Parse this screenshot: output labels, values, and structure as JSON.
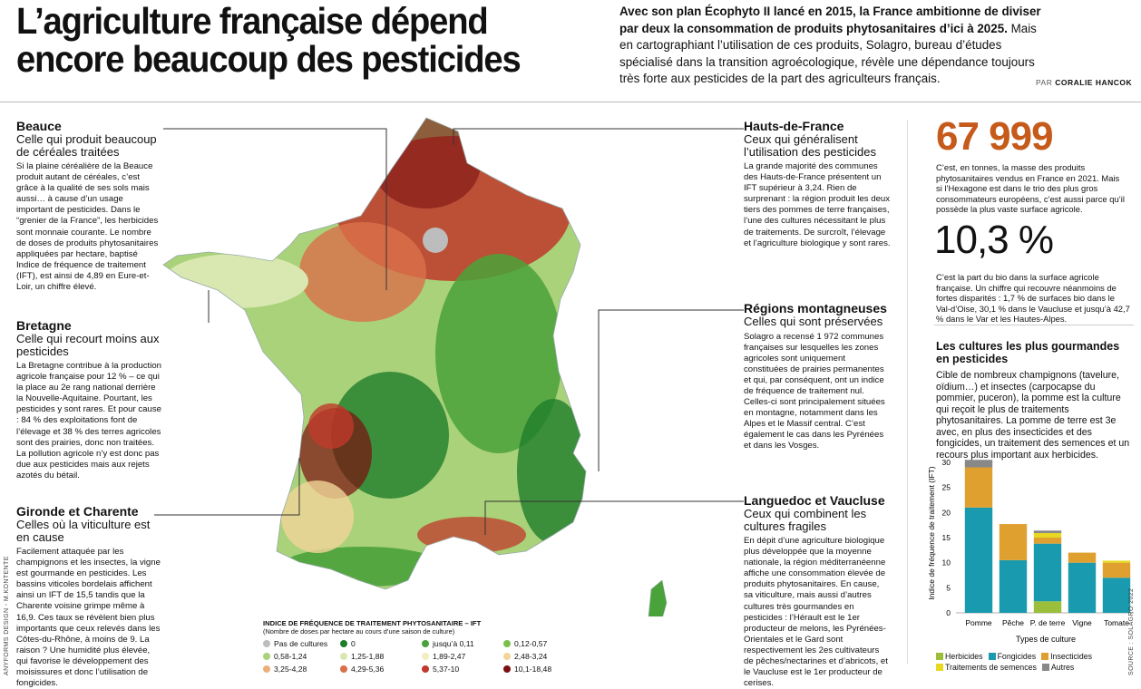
{
  "headline": {
    "line1": "L’agriculture française dépend",
    "line2": "encore beaucoup des pesticides"
  },
  "intro": {
    "bold": "Avec son plan Écophyto II lancé en 2015, la France ambitionne de diviser par deux la consommation de produits phytosanitaires d’ici à 2025.",
    "rest": " Mais en cartographiant l’utilisation de ces produits, Solagro, bureau d’études spécialisé dans la transition agroécologique, révèle une dépendance toujours très forte aux pesticides de la part des agriculteurs français."
  },
  "byline": {
    "prefix": "PAR ",
    "author": "CORALIE HANCOK"
  },
  "sections": {
    "beauce": {
      "title": "Beauce",
      "subtitle": "Celle qui produit beaucoup de céréales traitées",
      "body": "Si la plaine céréalière de la Beauce produit autant de céréales, c’est grâce à la qualité de ses sols mais aussi… à cause d’un usage important de pesticides. Dans le “grenier de la France”, les herbicides sont monnaie courante. Le nombre de doses de produits phytosanitaires appliquées par hectare, baptisé Indice de fréquence de traitement (IFT), est ainsi de 4,89 en Eure-et-Loir, un chiffre élevé."
    },
    "bretagne": {
      "title": "Bretagne",
      "subtitle": "Celle qui recourt moins aux pesticides",
      "body": "La Bretagne contribue à la production agricole française pour 12 % – ce qui la place au 2e rang national derrière la Nouvelle-Aquitaine. Pourtant, les pesticides y sont rares. Et pour cause : 84 % des exploitations font de l’élevage et 38 % des terres agricoles sont des prairies, donc non traitées. La pollution agricole n’y est donc pas due aux pesticides mais aux rejets azotés du bétail."
    },
    "gironde": {
      "title": "Gironde et Charente",
      "subtitle": "Celles où la viticulture est en cause",
      "body": "Facilement attaquée par les champignons et les insectes, la vigne est gourmande en pesticides. Les bassins viticoles bordelais affichent ainsi un IFT de 15,5 tandis que la Charente voisine grimpe même à 16,9. Ces taux se révèlent bien plus importants que ceux relevés dans les Côtes-du-Rhône, à moins de 9. La raison ? Une humidité plus élevée, qui favorise le développement des moisissures et donc l’utilisation de fongicides."
    },
    "hdf": {
      "title": "Hauts-de-France",
      "subtitle": "Ceux qui généralisent l’utilisation des pesticides",
      "body": "La grande majorité des communes des Hauts-de-France présentent un IFT supérieur à 3,24. Rien de surprenant : la région produit les deux tiers des pommes de terre françaises, l’une des cultures nécessitant le plus de traitements. De surcroît, l’élevage et l’agriculture biologique y sont rares."
    },
    "montagne": {
      "title": "Régions montagneuses",
      "subtitle": "Celles qui sont préservées",
      "body": "Solagro a recensé 1 972 communes françaises sur lesquelles les zones agricoles sont uniquement constituées de prairies permanentes et qui, par conséquent, ont un indice de fréquence de traitement nul. Celles-ci sont principalement situées en montagne, notamment dans les Alpes et le Massif central. C’est également le cas dans les Pyrénées et dans les Vosges."
    },
    "languedoc": {
      "title": "Languedoc et Vaucluse",
      "subtitle": "Ceux qui combinent les cultures fragiles",
      "body": "En dépit d’une agriculture biologique plus développée que la moyenne nationale, la région méditerranéenne affiche une consommation élevée de produits phytosanitaires. En cause, sa viticulture, mais aussi d’autres cultures très gourmandes en pesticides : l’Hérault est le 1er producteur de melons, les Pyrénées-Orientales et le Gard sont respectivement les 2es cultivateurs de pêches/nectarines et d’abricots, et le Vaucluse est le 1er producteur de cerises."
    }
  },
  "stats": {
    "stat1": {
      "value": "67 999",
      "text": "C’est, en tonnes, la masse des produits phytosanitaires vendus en France en 2021. Mais si l’Hexagone est dans le trio des plus gros consommateurs européens, c’est aussi parce qu’il possède la plus vaste surface agricole."
    },
    "stat2": {
      "value": "10,3 %",
      "text": "C’est la part du bio dans la surface agricole française. Un chiffre qui recouvre néanmoins de fortes disparités : 1,7 % de surfaces bio dans le Val-d’Oise, 30,1 % dans le Vaucluse et jusqu’à 42,7 % dans le Var et les Hautes-Alpes."
    }
  },
  "cultures": {
    "title": "Les cultures les plus gourmandes en pesticides",
    "text": "Cible de nombreux champignons (tavelure, oïdium…) et insectes (carpocapse du pommier, puceron), la pomme est la culture qui reçoit le plus de traitements phytosanitaires. La pomme de terre est 3e avec, en plus des insecticides et des fongicides, un traitement des semences et un recours plus important aux herbicides."
  },
  "chart_data": {
    "type": "bar",
    "stacked": true,
    "categories": [
      "Pomme",
      "Pêche",
      "P. de terre",
      "Vigne",
      "Tomate"
    ],
    "xlabel": "Types de culture",
    "ylabel": "Indice de fréquence de traitement (IFT)",
    "ylim": [
      0,
      30
    ],
    "yticks": [
      0,
      5,
      10,
      15,
      20,
      25,
      30
    ],
    "series": [
      {
        "name": "Herbicides",
        "color": "#9bbf3a",
        "values": [
          0,
          0,
          2.3,
          0,
          0
        ]
      },
      {
        "name": "Fongicides",
        "color": "#1a9aae",
        "values": [
          21,
          10.5,
          11.5,
          10,
          7
        ]
      },
      {
        "name": "Insecticides",
        "color": "#e0a030",
        "values": [
          8,
          7.2,
          1.2,
          2,
          3
        ]
      },
      {
        "name": "Traitements de semences",
        "color": "#e8d820",
        "values": [
          0,
          0,
          0.9,
          0,
          0.4
        ]
      },
      {
        "name": "Autres",
        "color": "#888888",
        "values": [
          1.5,
          0,
          0.5,
          0,
          0
        ]
      }
    ],
    "legend_position": "bottom"
  },
  "map_legend": {
    "title": "INDICE DE FRÉQUENCE DE TRAITEMENT PHYTOSANITAIRE – IFT",
    "subtitle": "(Nombre de doses par hectare au cours d’une saison de culture)",
    "items": [
      {
        "label": "Pas de cultures",
        "color": "#bdbdbd"
      },
      {
        "label": "0",
        "color": "#1f7d2a"
      },
      {
        "label": "jusqu’à 0,11",
        "color": "#4aa23a"
      },
      {
        "label": "0,12-0,57",
        "color": "#7bbf4a"
      },
      {
        "label": "0,58-1,24",
        "color": "#aad27a"
      },
      {
        "label": "1,25-1,88",
        "color": "#d9e8b0"
      },
      {
        "label": "1,89-2,47",
        "color": "#f1eec0"
      },
      {
        "label": "2,48-3,24",
        "color": "#f3d49a"
      },
      {
        "label": "3,25-4,28",
        "color": "#eab07a"
      },
      {
        "label": "4,29-5,36",
        "color": "#d9704a"
      },
      {
        "label": "5,37-10",
        "color": "#c0392b"
      },
      {
        "label": "10,1-18,48",
        "color": "#7a1010"
      }
    ]
  },
  "source": "SOURCE : SOLAGRO 2022",
  "credit": "ANYFORMS DESIGN - M.KONTENTE"
}
